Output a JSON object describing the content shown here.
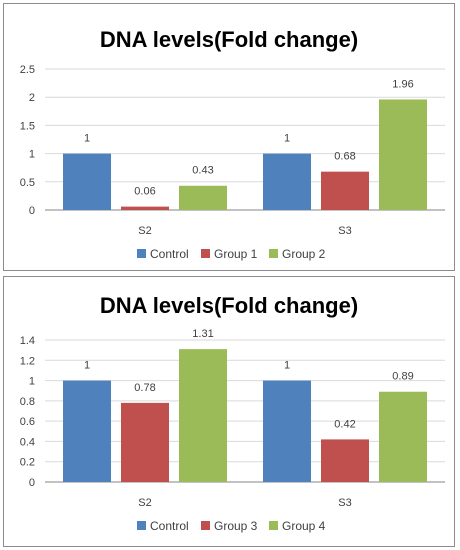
{
  "chart_data": [
    {
      "type": "bar",
      "title": "DNA levels(Fold change)",
      "categories": [
        "S2",
        "S3"
      ],
      "series": [
        {
          "name": "Control",
          "values": [
            1,
            1
          ],
          "labels": [
            "1",
            "1"
          ],
          "color": "#4F81BD"
        },
        {
          "name": "Group 1",
          "values": [
            0.06,
            0.68
          ],
          "labels": [
            "0.06",
            "0.68"
          ],
          "color": "#C0504D"
        },
        {
          "name": "Group 2",
          "values": [
            0.43,
            1.96
          ],
          "labels": [
            "0.43",
            "1.96"
          ],
          "color": "#9BBB59"
        }
      ],
      "ylim": [
        0,
        2.5
      ],
      "yticks": [
        "0",
        "0.5",
        "1",
        "1.5",
        "2",
        "2.5"
      ],
      "grid": true,
      "legend": "bottom"
    },
    {
      "type": "bar",
      "title": "DNA levels(Fold change)",
      "categories": [
        "S2",
        "S3"
      ],
      "series": [
        {
          "name": "Control",
          "values": [
            1,
            1
          ],
          "labels": [
            "1",
            "1"
          ],
          "color": "#4F81BD"
        },
        {
          "name": "Group 3",
          "values": [
            0.78,
            0.42
          ],
          "labels": [
            "0.78",
            "0.42"
          ],
          "color": "#C0504D"
        },
        {
          "name": "Group 4",
          "values": [
            1.31,
            0.89
          ],
          "labels": [
            "1.31",
            "0.89"
          ],
          "color": "#9BBB59"
        }
      ],
      "ylim": [
        0,
        1.4
      ],
      "yticks": [
        "0",
        "0.2",
        "0.4",
        "0.6",
        "0.8",
        "1",
        "1.2",
        "1.4"
      ],
      "grid": true,
      "legend": "bottom"
    }
  ]
}
